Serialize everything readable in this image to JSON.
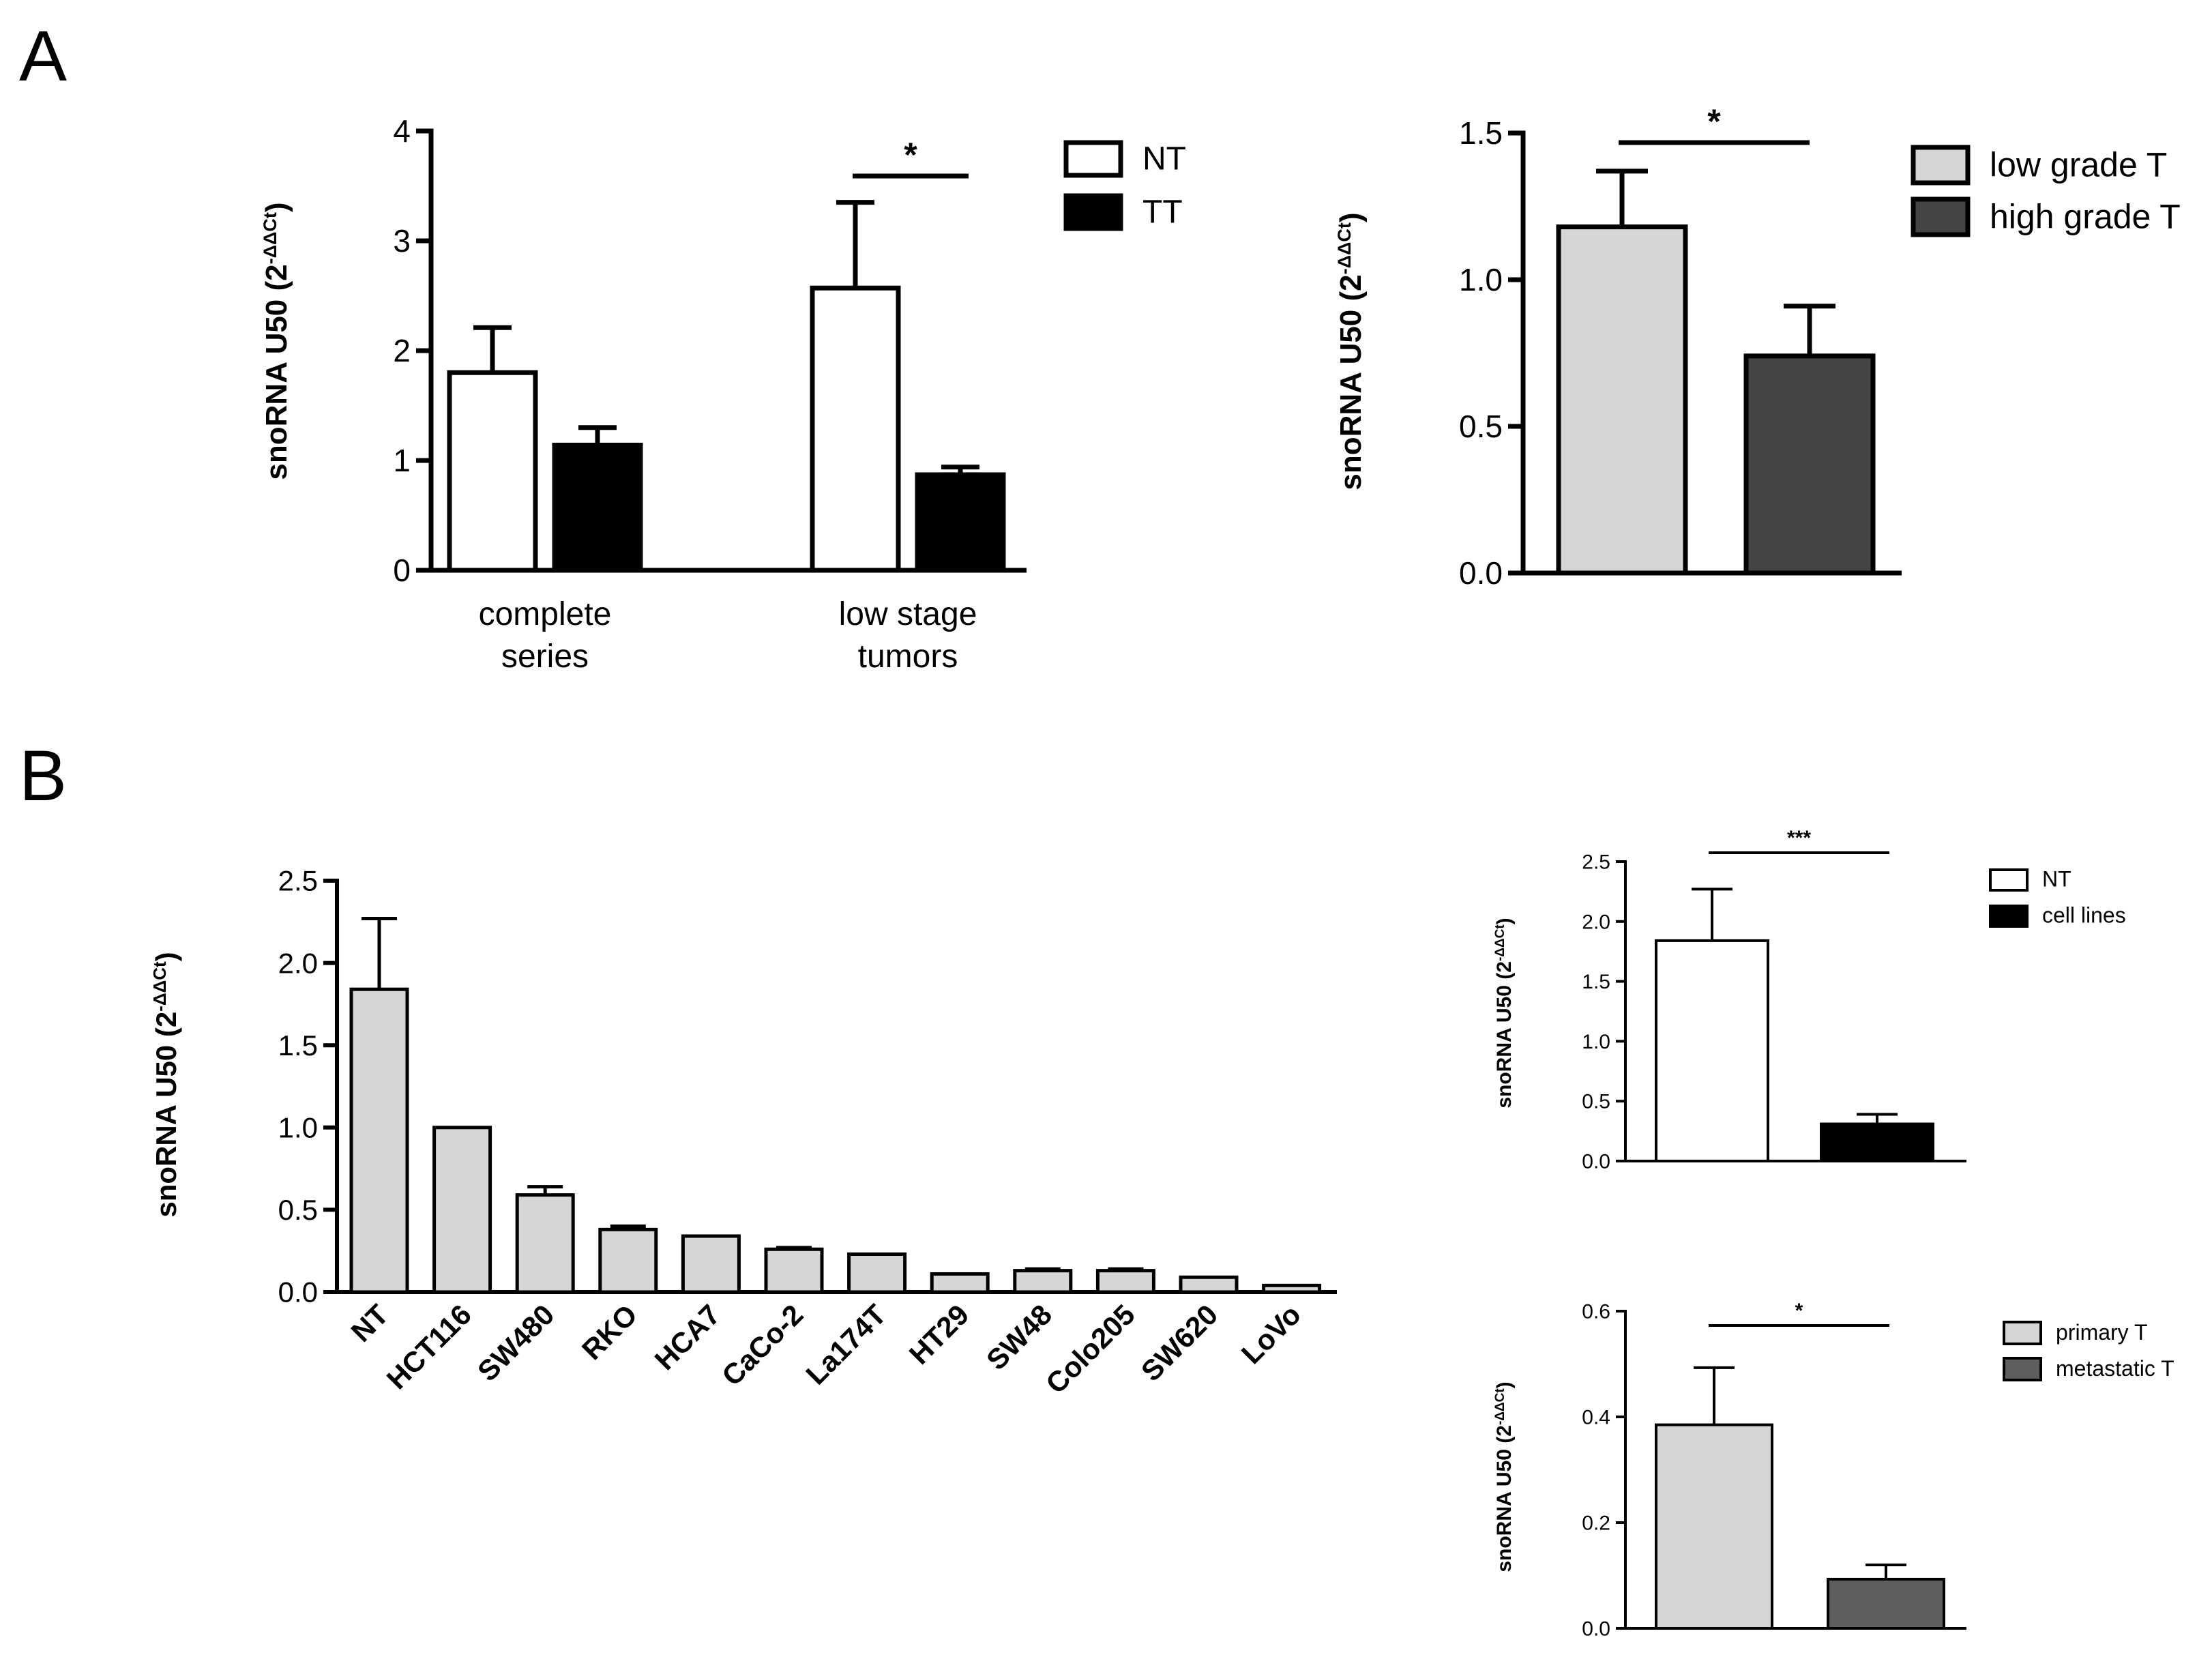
{
  "panels": [
    "A",
    "B"
  ],
  "chart_data": [
    {
      "id": "a1",
      "type": "bar",
      "panel": "A",
      "categories": [
        [
          "complete",
          "series"
        ],
        [
          "low stage",
          "tumors"
        ]
      ],
      "series": [
        {
          "name": "NT",
          "values": [
            1.8,
            2.57
          ],
          "errors": [
            0.41,
            0.78
          ],
          "color": "#ffffff"
        },
        {
          "name": "TT",
          "values": [
            1.14,
            0.87
          ],
          "errors": [
            0.16,
            0.07
          ],
          "color": "#000000"
        }
      ],
      "ylabel": "snoRNA U50",
      "ylabel_unit": {
        "base": "(2",
        "sup": "-ΔΔCt",
        "close": ")"
      },
      "ylim": [
        0,
        4
      ],
      "yticks": [
        0,
        1,
        2,
        3,
        4
      ],
      "ytick_labels": [
        "0",
        "1",
        "2",
        "3",
        "4"
      ],
      "significance": [
        {
          "label": "*",
          "category": 1
        }
      ],
      "legend": "top-right"
    },
    {
      "id": "a2",
      "type": "bar",
      "panel": "A",
      "categories": [
        [
          "low grade T"
        ],
        [
          "high grade T"
        ]
      ],
      "series": [
        {
          "name": "value",
          "values": [
            1.18,
            0.74
          ],
          "errors": [
            0.19,
            0.17
          ],
          "colors": [
            "#d6d6d6",
            "#444444"
          ]
        }
      ],
      "legend_entries": [
        {
          "label": "low grade T",
          "color": "#d6d6d6"
        },
        {
          "label": "high grade T",
          "color": "#444444"
        }
      ],
      "ylabel": "snoRNA U50",
      "ylabel_unit": {
        "base": "(2",
        "sup": "-ΔΔCt",
        "close": ")"
      },
      "ylim": [
        0,
        1.5
      ],
      "yticks": [
        0,
        0.5,
        1.0,
        1.5
      ],
      "ytick_labels": [
        "0.0",
        "0.5",
        "1.0",
        "1.5"
      ],
      "significance": [
        {
          "label": "*"
        }
      ],
      "legend": "top-right"
    },
    {
      "id": "b1",
      "type": "bar",
      "panel": "B",
      "categories": [
        "NT",
        "HCT116",
        "SW480",
        "RKO",
        "HCA7",
        "CaCo-2",
        "La174T",
        "HT29",
        "SW48",
        "Colo205",
        "SW620",
        "LoVo"
      ],
      "values": [
        1.84,
        1.0,
        0.59,
        0.38,
        0.34,
        0.26,
        0.23,
        0.11,
        0.13,
        0.13,
        0.09,
        0.04
      ],
      "errors": [
        0.43,
        0.0,
        0.05,
        0.02,
        0.0,
        0.01,
        0.0,
        0.0,
        0.01,
        0.01,
        0.0,
        0.0
      ],
      "color": "#d6d6d6",
      "ylabel": "snoRNA U50",
      "ylabel_unit": {
        "base": "(2",
        "sup": "-ΔΔCt",
        "close": ")"
      },
      "ylim": [
        0,
        2.5
      ],
      "yticks": [
        0,
        0.5,
        1.0,
        1.5,
        2.0,
        2.5
      ],
      "ytick_labels": [
        "0.0",
        "0.5",
        "1.0",
        "1.5",
        "2.0",
        "2.5"
      ]
    },
    {
      "id": "b2",
      "type": "bar",
      "panel": "B",
      "categories": [
        [
          "NT"
        ],
        [
          "cell lines"
        ]
      ],
      "series": [
        {
          "name": "value",
          "values": [
            1.84,
            0.31
          ],
          "errors": [
            0.43,
            0.08
          ],
          "colors": [
            "#ffffff",
            "#000000"
          ]
        }
      ],
      "legend_entries": [
        {
          "label": "NT",
          "color": "#ffffff"
        },
        {
          "label": "cell lines",
          "color": "#000000"
        }
      ],
      "ylabel": "snoRNA U50",
      "ylabel_unit": {
        "base": "(2",
        "sup": "-ΔΔCt",
        "close": ")"
      },
      "ylim": [
        0,
        2.5
      ],
      "yticks": [
        0,
        0.5,
        1.0,
        1.5,
        2.0,
        2.5
      ],
      "ytick_labels": [
        "0.0",
        "0.5",
        "1.0",
        "1.5",
        "2.0",
        "2.5"
      ],
      "significance": [
        {
          "label": "***"
        }
      ],
      "legend": "top-right"
    },
    {
      "id": "b3",
      "type": "bar",
      "panel": "B",
      "categories": [
        [
          "primary T"
        ],
        [
          "metastatic T"
        ]
      ],
      "series": [
        {
          "name": "value",
          "values": [
            0.385,
            0.093
          ],
          "errors": [
            0.108,
            0.027
          ],
          "colors": [
            "#d6d6d6",
            "#5e5e5e"
          ]
        }
      ],
      "legend_entries": [
        {
          "label": "primary T",
          "color": "#d6d6d6"
        },
        {
          "label": "metastatic T",
          "color": "#5e5e5e"
        }
      ],
      "ylabel": "snoRNA U50",
      "ylabel_unit": {
        "base": "(2",
        "sup": "-ΔΔCt",
        "close": ")"
      },
      "ylim": [
        0,
        0.6
      ],
      "yticks": [
        0,
        0.2,
        0.4,
        0.6
      ],
      "ytick_labels": [
        "0.0",
        "0.2",
        "0.4",
        "0.6"
      ],
      "significance": [
        {
          "label": "*"
        }
      ],
      "legend": "top-right"
    }
  ]
}
